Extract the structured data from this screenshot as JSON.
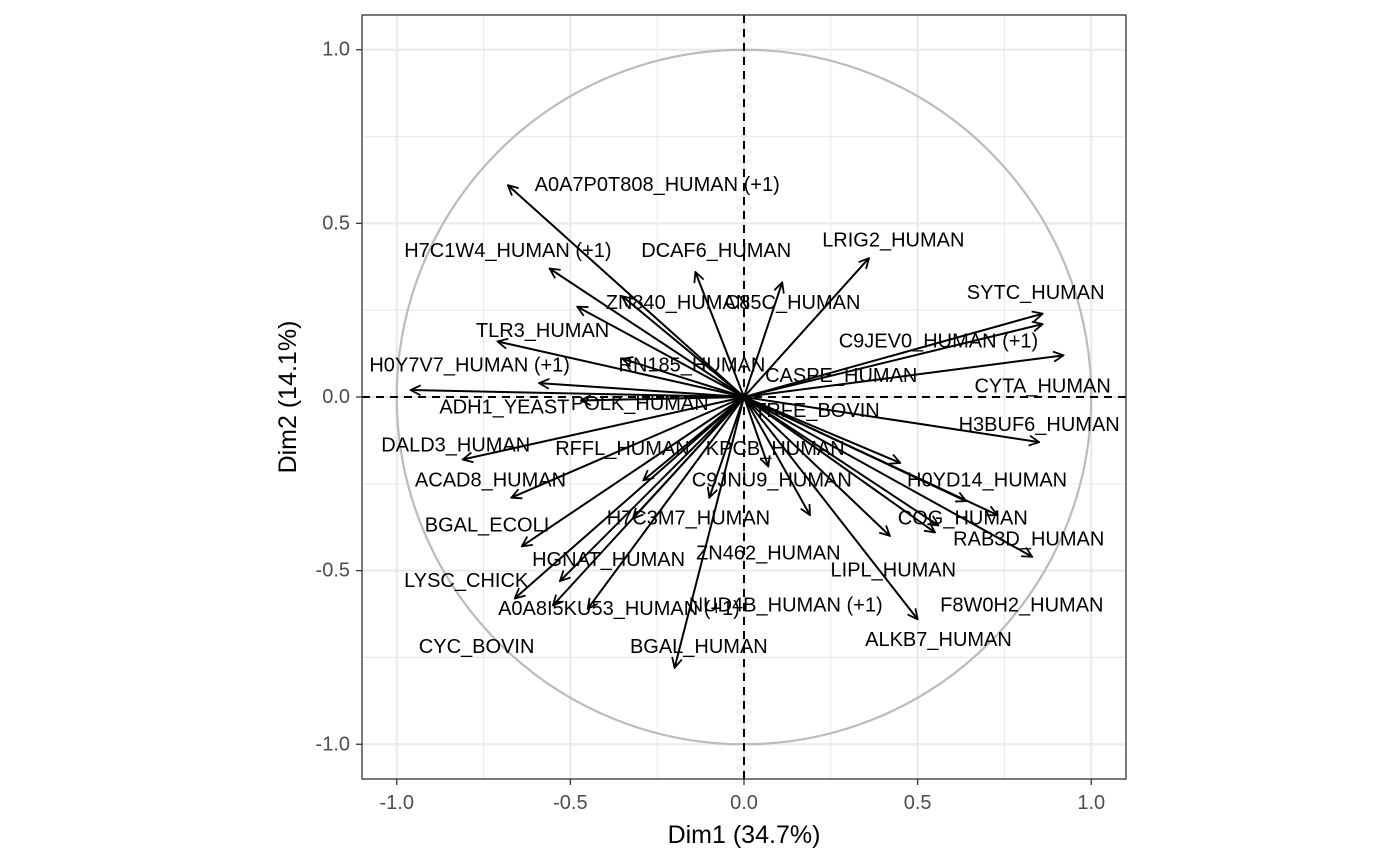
{
  "chart_data": {
    "type": "scatter",
    "subtype": "pca-variable-correlation-circle",
    "title": "",
    "xlabel": "Dim1 (34.7%)",
    "ylabel": "Dim2 (14.1%)",
    "xlim": [
      -1.1,
      1.1
    ],
    "ylim": [
      -1.1,
      1.1
    ],
    "xticks": [
      -1.0,
      -0.5,
      0.0,
      0.5,
      1.0
    ],
    "yticks": [
      -1.0,
      -0.5,
      0.0,
      0.5,
      1.0
    ],
    "xtick_labels": [
      "-1.0",
      "-0.5",
      "0.0",
      "0.5",
      "1.0"
    ],
    "ytick_labels": [
      "-1.0",
      "-0.5",
      "0.0",
      "0.5",
      "1.0"
    ],
    "grid": true,
    "unit_circle": true,
    "colors": {
      "arrow": "#000000",
      "circle": "#bbbbbb",
      "grid": "#ebebeb",
      "panel_border": "#333333"
    },
    "vectors": [
      {
        "x": -0.68,
        "y": 0.61
      },
      {
        "x": -0.56,
        "y": 0.37
      },
      {
        "x": -0.48,
        "y": 0.26
      },
      {
        "x": -0.35,
        "y": 0.29
      },
      {
        "x": -0.71,
        "y": 0.16
      },
      {
        "x": -0.35,
        "y": 0.11
      },
      {
        "x": -0.96,
        "y": 0.02
      },
      {
        "x": -0.59,
        "y": 0.04
      },
      {
        "x": -0.47,
        "y": -0.01
      },
      {
        "x": -0.81,
        "y": -0.18
      },
      {
        "x": -0.67,
        "y": -0.29
      },
      {
        "x": -0.29,
        "y": -0.24
      },
      {
        "x": -0.32,
        "y": -0.35
      },
      {
        "x": -0.64,
        "y": -0.43
      },
      {
        "x": -0.53,
        "y": -0.53
      },
      {
        "x": -0.66,
        "y": -0.58
      },
      {
        "x": -0.55,
        "y": -0.6
      },
      {
        "x": -0.45,
        "y": -0.61
      },
      {
        "x": -0.2,
        "y": -0.78
      },
      {
        "x": -0.1,
        "y": -0.29
      },
      {
        "x": -0.14,
        "y": 0.36
      },
      {
        "x": 0.11,
        "y": 0.33
      },
      {
        "x": 0.36,
        "y": 0.4
      },
      {
        "x": 0.86,
        "y": 0.24
      },
      {
        "x": 0.86,
        "y": 0.21
      },
      {
        "x": 0.92,
        "y": 0.12
      },
      {
        "x": 0.85,
        "y": -0.13
      },
      {
        "x": 0.45,
        "y": -0.19
      },
      {
        "x": 0.64,
        "y": -0.3
      },
      {
        "x": 0.73,
        "y": -0.34
      },
      {
        "x": 0.56,
        "y": -0.37
      },
      {
        "x": 0.83,
        "y": -0.46
      },
      {
        "x": 0.42,
        "y": -0.4
      },
      {
        "x": 0.55,
        "y": -0.39
      },
      {
        "x": 0.5,
        "y": -0.64
      },
      {
        "x": 0.19,
        "y": -0.34
      },
      {
        "x": 0.07,
        "y": -0.2
      }
    ],
    "labels": [
      {
        "text": "A0A7P0T808_HUMAN (+1)",
        "x": -0.25,
        "y": 0.61
      },
      {
        "text": "H7C1W4_HUMAN (+1)",
        "x": -0.68,
        "y": 0.42
      },
      {
        "text": "DCAF6_HUMAN",
        "x": -0.08,
        "y": 0.42
      },
      {
        "text": "LRIG2_HUMAN",
        "x": 0.43,
        "y": 0.45
      },
      {
        "text": "ZN840_HUMAN",
        "x": -0.19,
        "y": 0.27
      },
      {
        "text": "C85C_HUMAN",
        "x": 0.14,
        "y": 0.27
      },
      {
        "text": "SYTC_HUMAN",
        "x": 0.84,
        "y": 0.3
      },
      {
        "text": "TLR3_HUMAN",
        "x": -0.58,
        "y": 0.19
      },
      {
        "text": "C9JEV0_HUMAN (+1)",
        "x": 0.56,
        "y": 0.16
      },
      {
        "text": "H0Y7V7_HUMAN (+1)",
        "x": -0.79,
        "y": 0.09
      },
      {
        "text": "RN185_HUMAN",
        "x": -0.15,
        "y": 0.09
      },
      {
        "text": "CASPE_HUMAN",
        "x": 0.28,
        "y": 0.06
      },
      {
        "text": "CYTA_HUMAN",
        "x": 0.86,
        "y": 0.03
      },
      {
        "text": "ADH1_YEAST",
        "x": -0.69,
        "y": -0.03
      },
      {
        "text": "POLK_HUMAN",
        "x": -0.3,
        "y": -0.02
      },
      {
        "text": "TRFE_BOVIN",
        "x": 0.21,
        "y": -0.04
      },
      {
        "text": "H3BUF6_HUMAN",
        "x": 0.85,
        "y": -0.08
      },
      {
        "text": "DALD3_HUMAN",
        "x": -0.83,
        "y": -0.14
      },
      {
        "text": "RFFL_HUMAN",
        "x": -0.35,
        "y": -0.15
      },
      {
        "text": "KPCB_HUMAN",
        "x": 0.09,
        "y": -0.15
      },
      {
        "text": "ACAD8_HUMAN",
        "x": -0.73,
        "y": -0.24
      },
      {
        "text": "C9JNU9_HUMAN",
        "x": 0.08,
        "y": -0.24
      },
      {
        "text": "H0YD14_HUMAN",
        "x": 0.7,
        "y": -0.24
      },
      {
        "text": "BGAL_ECOLI",
        "x": -0.74,
        "y": -0.37
      },
      {
        "text": "H7C3M7_HUMAN",
        "x": -0.16,
        "y": -0.35
      },
      {
        "text": "COG_HUMAN",
        "x": 0.63,
        "y": -0.35
      },
      {
        "text": "RAB3D_HUMAN",
        "x": 0.82,
        "y": -0.41
      },
      {
        "text": "ZN462_HUMAN",
        "x": 0.07,
        "y": -0.45
      },
      {
        "text": "HGNAT_HUMAN",
        "x": -0.39,
        "y": -0.47
      },
      {
        "text": "LIPL_HUMAN",
        "x": 0.43,
        "y": -0.5
      },
      {
        "text": "LYSC_CHICK",
        "x": -0.8,
        "y": -0.53
      },
      {
        "text": "A0A8I5KU53_HUMAN (+1)",
        "x": -0.36,
        "y": -0.61
      },
      {
        "text": "NUD4B_HUMAN (+1)",
        "x": 0.12,
        "y": -0.6
      },
      {
        "text": "F8W0H2_HUMAN",
        "x": 0.8,
        "y": -0.6
      },
      {
        "text": "ALKB7_HUMAN",
        "x": 0.56,
        "y": -0.7
      },
      {
        "text": "CYC_BOVIN",
        "x": -0.77,
        "y": -0.72
      },
      {
        "text": "BGAL_HUMAN",
        "x": -0.13,
        "y": -0.72
      }
    ]
  }
}
